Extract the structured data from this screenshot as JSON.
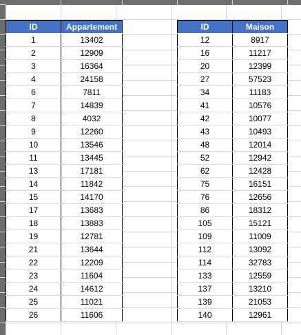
{
  "table_appartement": {
    "headers": [
      "ID",
      "Appartement"
    ],
    "rows": [
      [
        "1",
        "13402"
      ],
      [
        "2",
        "12909"
      ],
      [
        "3",
        "16364"
      ],
      [
        "4",
        "24158"
      ],
      [
        "6",
        "7811"
      ],
      [
        "7",
        "14839"
      ],
      [
        "8",
        "4032"
      ],
      [
        "9",
        "12260"
      ],
      [
        "10",
        "13546"
      ],
      [
        "11",
        "13445"
      ],
      [
        "13",
        "17181"
      ],
      [
        "14",
        "11842"
      ],
      [
        "15",
        "14170"
      ],
      [
        "17",
        "13683"
      ],
      [
        "18",
        "13883"
      ],
      [
        "19",
        "12781"
      ],
      [
        "21",
        "13644"
      ],
      [
        "22",
        "12209"
      ],
      [
        "23",
        "11604"
      ],
      [
        "24",
        "14612"
      ],
      [
        "25",
        "11021"
      ],
      [
        "26",
        "11606"
      ]
    ]
  },
  "table_maison": {
    "headers": [
      "ID",
      "Maison"
    ],
    "rows": [
      [
        "12",
        "8917"
      ],
      [
        "16",
        "11217"
      ],
      [
        "20",
        "12399"
      ],
      [
        "27",
        "57523"
      ],
      [
        "34",
        "11183"
      ],
      [
        "41",
        "10576"
      ],
      [
        "42",
        "10077"
      ],
      [
        "43",
        "10493"
      ],
      [
        "48",
        "12014"
      ],
      [
        "52",
        "12942"
      ],
      [
        "62",
        "12428"
      ],
      [
        "75",
        "16151"
      ],
      [
        "76",
        "12656"
      ],
      [
        "86",
        "18312"
      ],
      [
        "105",
        "15121"
      ],
      [
        "109",
        "11009"
      ],
      [
        "112",
        "13092"
      ],
      [
        "114",
        "32783"
      ],
      [
        "133",
        "12559"
      ],
      [
        "137",
        "13210"
      ],
      [
        "139",
        "21053"
      ],
      [
        "140",
        "12961"
      ]
    ]
  },
  "colors": {
    "header_fill": "#4472c4",
    "header_text": "#ffffff",
    "gridline": "#d4d4d4",
    "gutter": "#6d6d6d"
  }
}
